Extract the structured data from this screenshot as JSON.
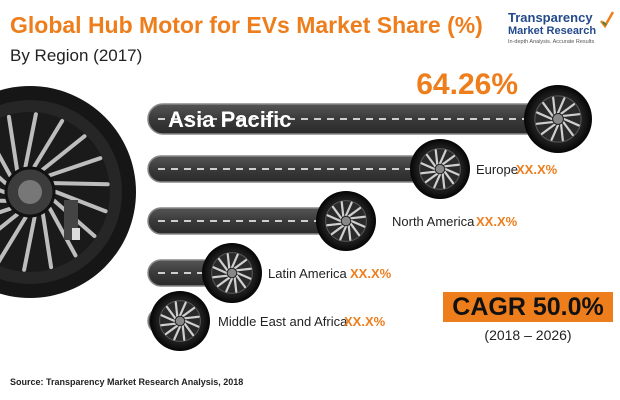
{
  "chart_data": {
    "type": "bar",
    "title": "Global Hub Motor for EVs Market Share (%)",
    "subtitle": "By Region (2017)",
    "categories": [
      "Asia Pacific",
      "Europe",
      "North America",
      "Latin America",
      "Middle East and Africa"
    ],
    "value_labels": [
      "64.26%",
      "XX.X%",
      "XX.X%",
      "XX.X%",
      "XX.X%"
    ],
    "values": [
      64.26,
      null,
      null,
      null,
      null
    ],
    "source": "Source: Transparency Market Research Analysis, 2018"
  },
  "cagr": {
    "label": "CAGR 50.0%",
    "period": "(2018 – 2026)"
  },
  "logo": {
    "name_line1": "Transparency",
    "name_line2": "Market Research",
    "tagline": "In-depth Analysis. Accurate Results"
  },
  "colors": {
    "accent": "#ee7d1c",
    "road": "#3f3f3f",
    "road_highlight": "#6a6a6a",
    "brand": "#244a8c"
  },
  "icons": {
    "wheel": "hub-motor-wheel-icon",
    "motor": "hub-motor-icon",
    "logo": "checkmark-icon"
  }
}
